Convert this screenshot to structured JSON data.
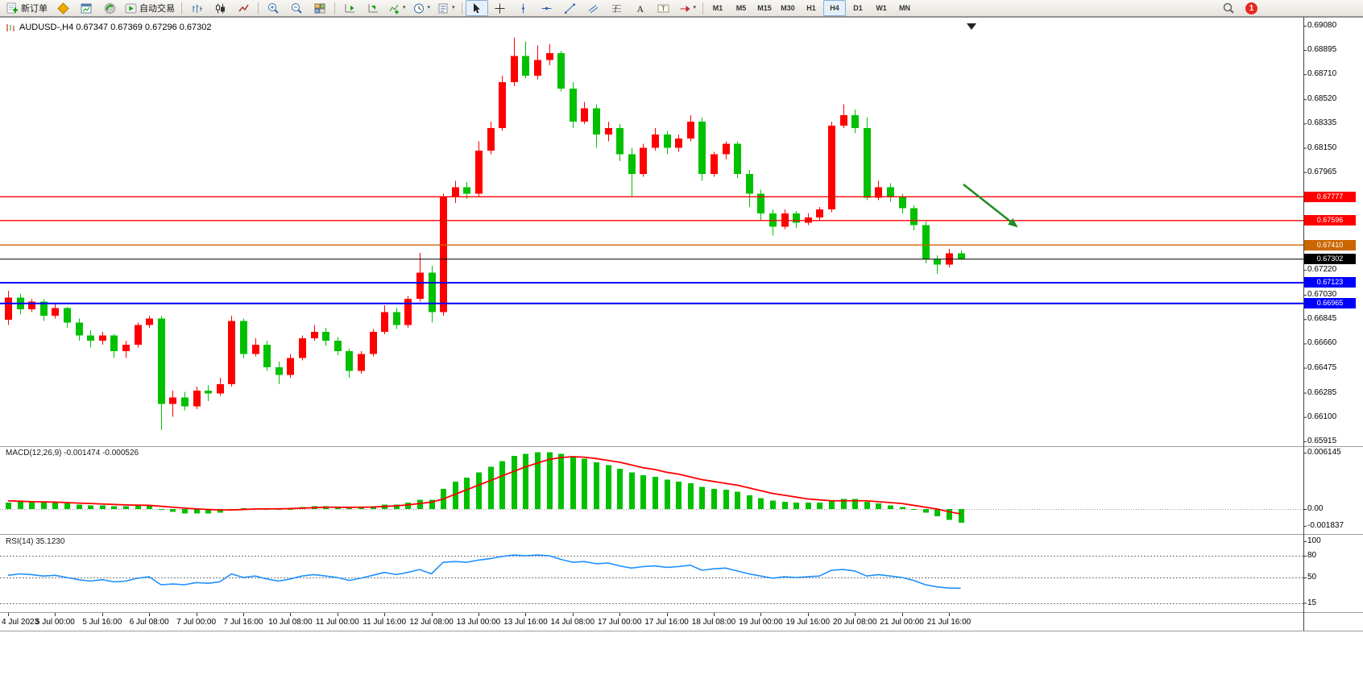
{
  "toolbar": {
    "new_order_label": "新订单",
    "autotrading_label": "自动交易",
    "timeframes": [
      "M1",
      "M5",
      "M15",
      "M30",
      "H1",
      "H4",
      "D1",
      "W1",
      "MN"
    ],
    "active_timeframe": "H4",
    "notification_count": "1"
  },
  "chart": {
    "title": "AUDUSD-,H4 0.67347 0.67369 0.67296 0.67302",
    "symbol": "AUDUSD-",
    "period": "H4",
    "open": "0.67347",
    "high": "0.67369",
    "low": "0.67296",
    "close": "0.67302"
  },
  "chart_data": {
    "type": "candlestick",
    "symbol": "AUDUSD-",
    "period": "H4",
    "colors": {
      "up": "#ff0000",
      "down": "#00c000",
      "macd_hist": "#00c000",
      "macd_signal": "#ff0000",
      "rsi": "#1e90ff",
      "bid_line": "#000000"
    },
    "candles": [
      [
        66840,
        67060,
        66800,
        67010
      ],
      [
        67010,
        67040,
        66880,
        66920
      ],
      [
        66920,
        67000,
        66900,
        66980
      ],
      [
        66980,
        67000,
        66830,
        66870
      ],
      [
        66870,
        66960,
        66850,
        66930
      ],
      [
        66930,
        66940,
        66780,
        66820
      ],
      [
        66820,
        66850,
        66680,
        66720
      ],
      [
        66720,
        66760,
        66630,
        66680
      ],
      [
        66680,
        66750,
        66650,
        66720
      ],
      [
        66720,
        66730,
        66550,
        66600
      ],
      [
        66600,
        66680,
        66550,
        66650
      ],
      [
        66650,
        66820,
        66630,
        66800
      ],
      [
        66800,
        66870,
        66780,
        66850
      ],
      [
        66850,
        66870,
        66000,
        66200
      ],
      [
        66200,
        66300,
        66100,
        66250
      ],
      [
        66250,
        66290,
        66150,
        66180
      ],
      [
        66180,
        66330,
        66160,
        66300
      ],
      [
        66300,
        66340,
        66220,
        66280
      ],
      [
        66280,
        66400,
        66260,
        66350
      ],
      [
        66350,
        66870,
        66330,
        66830
      ],
      [
        66830,
        66850,
        66550,
        66580
      ],
      [
        66580,
        66700,
        66560,
        66650
      ],
      [
        66650,
        66680,
        66450,
        66480
      ],
      [
        66480,
        66520,
        66350,
        66420
      ],
      [
        66420,
        66580,
        66400,
        66550
      ],
      [
        66550,
        66720,
        66530,
        66700
      ],
      [
        66700,
        66800,
        66680,
        66750
      ],
      [
        66750,
        66780,
        66640,
        66680
      ],
      [
        66680,
        66710,
        66570,
        66600
      ],
      [
        66600,
        66620,
        66400,
        66450
      ],
      [
        66450,
        66600,
        66430,
        66580
      ],
      [
        66580,
        66770,
        66560,
        66750
      ],
      [
        66750,
        66950,
        66730,
        66900
      ],
      [
        66900,
        66930,
        66770,
        66800
      ],
      [
        66800,
        67020,
        66780,
        67000
      ],
      [
        67000,
        67350,
        66980,
        67200
      ],
      [
        67200,
        67250,
        66820,
        66900
      ],
      [
        66900,
        67800,
        66870,
        67780
      ],
      [
        67780,
        67900,
        67730,
        67850
      ],
      [
        67850,
        67890,
        67760,
        67800
      ],
      [
        67800,
        68200,
        67780,
        68130
      ],
      [
        68130,
        68350,
        68100,
        68300
      ],
      [
        68300,
        68700,
        68280,
        68650
      ],
      [
        68650,
        68990,
        68620,
        68850
      ],
      [
        68850,
        68960,
        68680,
        68700
      ],
      [
        68700,
        68930,
        68670,
        68820
      ],
      [
        68820,
        68940,
        68780,
        68870
      ],
      [
        68870,
        68890,
        68580,
        68600
      ],
      [
        68600,
        68650,
        68300,
        68350
      ],
      [
        68350,
        68500,
        68330,
        68450
      ],
      [
        68450,
        68480,
        68150,
        68250
      ],
      [
        68250,
        68350,
        68200,
        68300
      ],
      [
        68300,
        68330,
        68050,
        68100
      ],
      [
        68100,
        68150,
        67780,
        67950
      ],
      [
        67950,
        68180,
        67930,
        68150
      ],
      [
        68150,
        68300,
        68130,
        68250
      ],
      [
        68250,
        68280,
        68100,
        68150
      ],
      [
        68150,
        68250,
        68120,
        68220
      ],
      [
        68220,
        68400,
        68200,
        68350
      ],
      [
        68350,
        68380,
        67900,
        67950
      ],
      [
        67950,
        68120,
        67930,
        68100
      ],
      [
        68100,
        68200,
        68060,
        68180
      ],
      [
        68180,
        68200,
        67920,
        67950
      ],
      [
        67950,
        67980,
        67700,
        67800
      ],
      [
        67800,
        67830,
        67600,
        67650
      ],
      [
        67650,
        67680,
        67480,
        67550
      ],
      [
        67550,
        67680,
        67530,
        67650
      ],
      [
        67650,
        67670,
        67540,
        67580
      ],
      [
        67580,
        67650,
        67560,
        67620
      ],
      [
        67620,
        67700,
        67600,
        67680
      ],
      [
        67680,
        68350,
        67660,
        68320
      ],
      [
        68320,
        68480,
        68300,
        68400
      ],
      [
        68400,
        68440,
        68260,
        68300
      ],
      [
        68300,
        68380,
        67750,
        67770
      ],
      [
        67770,
        67900,
        67750,
        67850
      ],
      [
        67850,
        67880,
        67740,
        67780
      ],
      [
        67780,
        67800,
        67650,
        67690
      ],
      [
        67690,
        67710,
        67520,
        67560
      ],
      [
        67560,
        67590,
        67270,
        67300
      ],
      [
        67300,
        67330,
        67190,
        67260
      ],
      [
        67260,
        67380,
        67240,
        67347
      ],
      [
        67347,
        67369,
        67296,
        67302
      ]
    ],
    "price_divisor": 100000,
    "time_labels": [
      "4 Jul 2023",
      "5 Jul 00:00",
      "5 Jul 16:00",
      "6 Jul 08:00",
      "7 Jul 00:00",
      "7 Jul 16:00",
      "10 Jul 08:00",
      "11 Jul 00:00",
      "11 Jul 16:00",
      "12 Jul 08:00",
      "13 Jul 00:00",
      "13 Jul 16:00",
      "14 Jul 08:00",
      "17 Jul 00:00",
      "17 Jul 16:00",
      "18 Jul 08:00",
      "19 Jul 00:00",
      "19 Jul 16:00",
      "20 Jul 08:00",
      "21 Jul 00:00",
      "21 Jul 16:00"
    ],
    "price_axis_labels": [
      "0.69080",
      "0.68895",
      "0.68710",
      "0.68520",
      "0.68335",
      "0.68150",
      "0.67965",
      "0.67220",
      "0.67030",
      "0.66845",
      "0.66660",
      "0.66475",
      "0.66285",
      "0.66100",
      "0.65915"
    ],
    "hlines": [
      {
        "price": 0.67777,
        "label": "0.67777",
        "color": "#ff0000",
        "width": 1.4
      },
      {
        "price": 0.67596,
        "label": "0.67596",
        "color": "#ff0000",
        "width": 1.4
      },
      {
        "price": 0.6741,
        "label": "0.67410",
        "color": "#cc6600",
        "width": 1.4
      },
      {
        "price": 0.67123,
        "label": "0.67123",
        "color": "#0000ff",
        "width": 2
      },
      {
        "price": 0.66965,
        "label": "0.66965",
        "color": "#0000ff",
        "width": 2
      }
    ],
    "current_price": {
      "value": 0.67302,
      "label": "0.67302",
      "color": "#000000"
    },
    "macd": {
      "label": "MACD(12,26,9)",
      "values_text": "-0.001474 -0.000526",
      "axis_labels": [
        "0.006145",
        "0.00",
        "-0.001837"
      ],
      "axis_values": [
        0.006145,
        0,
        -0.001837
      ],
      "histogram": [
        0.0007,
        0.0008,
        0.0008,
        0.0007,
        0.0007,
        0.0006,
        0.0005,
        0.0004,
        0.0004,
        0.0003,
        0.0003,
        0.0004,
        0.0004,
        -0.0001,
        -0.0003,
        -0.0005,
        -0.0005,
        -0.0005,
        -0.0004,
        0.0,
        0.0001,
        0.0001,
        0.0,
        -0.0001,
        0.0,
        0.0002,
        0.0003,
        0.0003,
        0.0002,
        0.0001,
        0.0002,
        0.0003,
        0.0005,
        0.0005,
        0.0007,
        0.001,
        0.001,
        0.0022,
        0.003,
        0.0034,
        0.004,
        0.0046,
        0.0052,
        0.0058,
        0.006,
        0.0062,
        0.0062,
        0.006,
        0.0057,
        0.0055,
        0.0051,
        0.0048,
        0.0044,
        0.004,
        0.0037,
        0.0035,
        0.0032,
        0.003,
        0.0028,
        0.0024,
        0.0022,
        0.0021,
        0.0019,
        0.0015,
        0.0012,
        0.0009,
        0.0008,
        0.0007,
        0.0007,
        0.0007,
        0.0009,
        0.0011,
        0.0011,
        0.0008,
        0.0006,
        0.0004,
        0.0002,
        0.0,
        -0.0004,
        -0.0008,
        -0.0012,
        -0.001474
      ],
      "signal": [
        0.0009,
        0.00085,
        0.0008,
        0.00078,
        0.00075,
        0.0007,
        0.00065,
        0.0006,
        0.00055,
        0.0005,
        0.00045,
        0.00042,
        0.0004,
        0.0003,
        0.0002,
        0.0001,
        2e-05,
        -5e-05,
        -0.0001,
        -0.0001,
        -5e-05,
        0,
        2e-05,
        2e-05,
        5e-05,
        0.0001,
        0.00015,
        0.0002,
        0.0002,
        0.00018,
        0.0002,
        0.00022,
        0.00028,
        0.00035,
        0.00045,
        0.0006,
        0.00075,
        0.0011,
        0.0016,
        0.0021,
        0.0026,
        0.0031,
        0.0036,
        0.0041,
        0.0046,
        0.005,
        0.0054,
        0.0056,
        0.0057,
        0.00565,
        0.0055,
        0.0053,
        0.0051,
        0.0048,
        0.0045,
        0.0043,
        0.004,
        0.0038,
        0.0035,
        0.0032,
        0.003,
        0.0028,
        0.0026,
        0.0023,
        0.002,
        0.0017,
        0.0015,
        0.0013,
        0.0011,
        0.001,
        0.0009,
        0.0009,
        0.0009,
        0.0009,
        0.0008,
        0.0007,
        0.0006,
        0.0004,
        0.0002,
        0,
        -0.0003,
        -0.000526
      ]
    },
    "rsi": {
      "label": "RSI(14)",
      "value_text": "35.1230",
      "axis_labels": [
        "100",
        "80",
        "50",
        "15"
      ],
      "axis_levels": [
        100,
        80,
        50,
        15
      ],
      "levels": [
        80,
        50,
        15
      ],
      "values": [
        53,
        55,
        54,
        52,
        53,
        50,
        47,
        45,
        47,
        44,
        45,
        49,
        51,
        40,
        41,
        40,
        43,
        42,
        44,
        55,
        50,
        52,
        48,
        45,
        48,
        52,
        54,
        52,
        50,
        46,
        49,
        53,
        57,
        54,
        57,
        61,
        55,
        71,
        72,
        71,
        74,
        76,
        79,
        81,
        80,
        81,
        80,
        75,
        71,
        72,
        69,
        70,
        66,
        63,
        65,
        66,
        64,
        65,
        67,
        60,
        62,
        63,
        59,
        55,
        52,
        49,
        51,
        50,
        51,
        52,
        60,
        61,
        59,
        52,
        54,
        52,
        50,
        46,
        40,
        37,
        35.5,
        35.12
      ]
    },
    "annotation_arrow": {
      "from": [
        1196,
        208
      ],
      "to": [
        1262,
        260
      ],
      "color": "#228b22"
    }
  }
}
